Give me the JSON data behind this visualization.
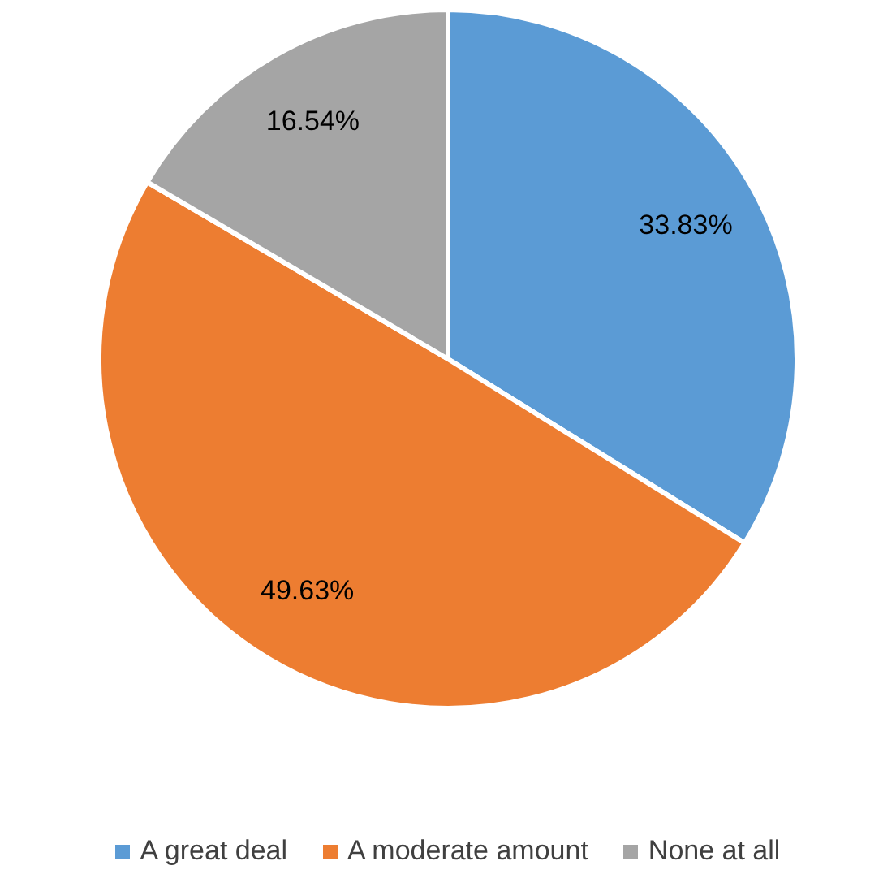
{
  "chart_data": {
    "type": "pie",
    "categories": [
      "A great deal",
      "A moderate amount",
      "None at all"
    ],
    "values": [
      33.83,
      49.63,
      16.54
    ],
    "colors": [
      "#5b9bd5",
      "#ed7d31",
      "#a5a5a5"
    ],
    "value_labels": [
      "33.83%",
      "49.63%",
      "16.54%"
    ],
    "legend": "bottom"
  }
}
